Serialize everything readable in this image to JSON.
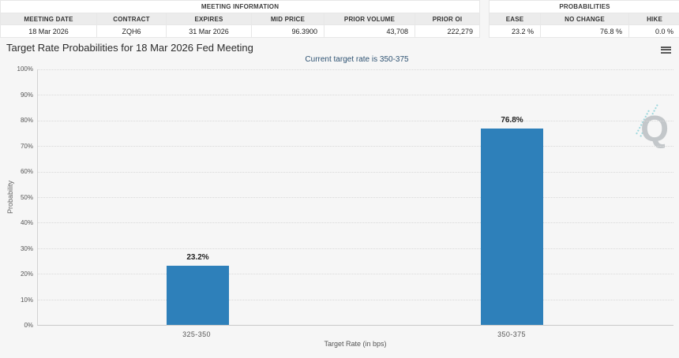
{
  "tables": {
    "meeting": {
      "group_header": "MEETING INFORMATION",
      "columns": [
        "MEETING DATE",
        "CONTRACT",
        "EXPIRES",
        "MID PRICE",
        "PRIOR VOLUME",
        "PRIOR OI"
      ],
      "values": [
        "18 Mar 2026",
        "ZQH6",
        "31 Mar 2026",
        "96.3900",
        "43,708",
        "222,279"
      ]
    },
    "probabilities": {
      "group_header": "PROBABILITIES",
      "columns": [
        "EASE",
        "NO CHANGE",
        "HIKE"
      ],
      "values": [
        "23.2 %",
        "76.8 %",
        "0.0 %"
      ]
    }
  },
  "chart": {
    "title": "Target Rate Probabilities for 18 Mar 2026 Fed Meeting",
    "subtitle": "Current target rate is 350-375",
    "menu_icon": "hamburger-menu-icon",
    "watermark_letter": "Q",
    "ylabel": "Probability",
    "xlabel": "Target Rate (in bps)",
    "yticks": [
      "100%",
      "90%",
      "80%",
      "70%",
      "60%",
      "50%",
      "40%",
      "30%",
      "20%",
      "10%",
      "0%"
    ]
  },
  "chart_data": {
    "type": "bar",
    "title": "Target Rate Probabilities for 18 Mar 2026 Fed Meeting",
    "subtitle": "Current target rate is 350-375",
    "categories": [
      "325-350",
      "350-375"
    ],
    "values": [
      23.2,
      76.8
    ],
    "data_labels": [
      "23.2%",
      "76.8%"
    ],
    "xlabel": "Target Rate (in bps)",
    "ylabel": "Probability",
    "ylim": [
      0,
      100
    ],
    "ytick_step": 10,
    "grid": true,
    "legend": "none",
    "bar_color": "#2e80ba"
  }
}
